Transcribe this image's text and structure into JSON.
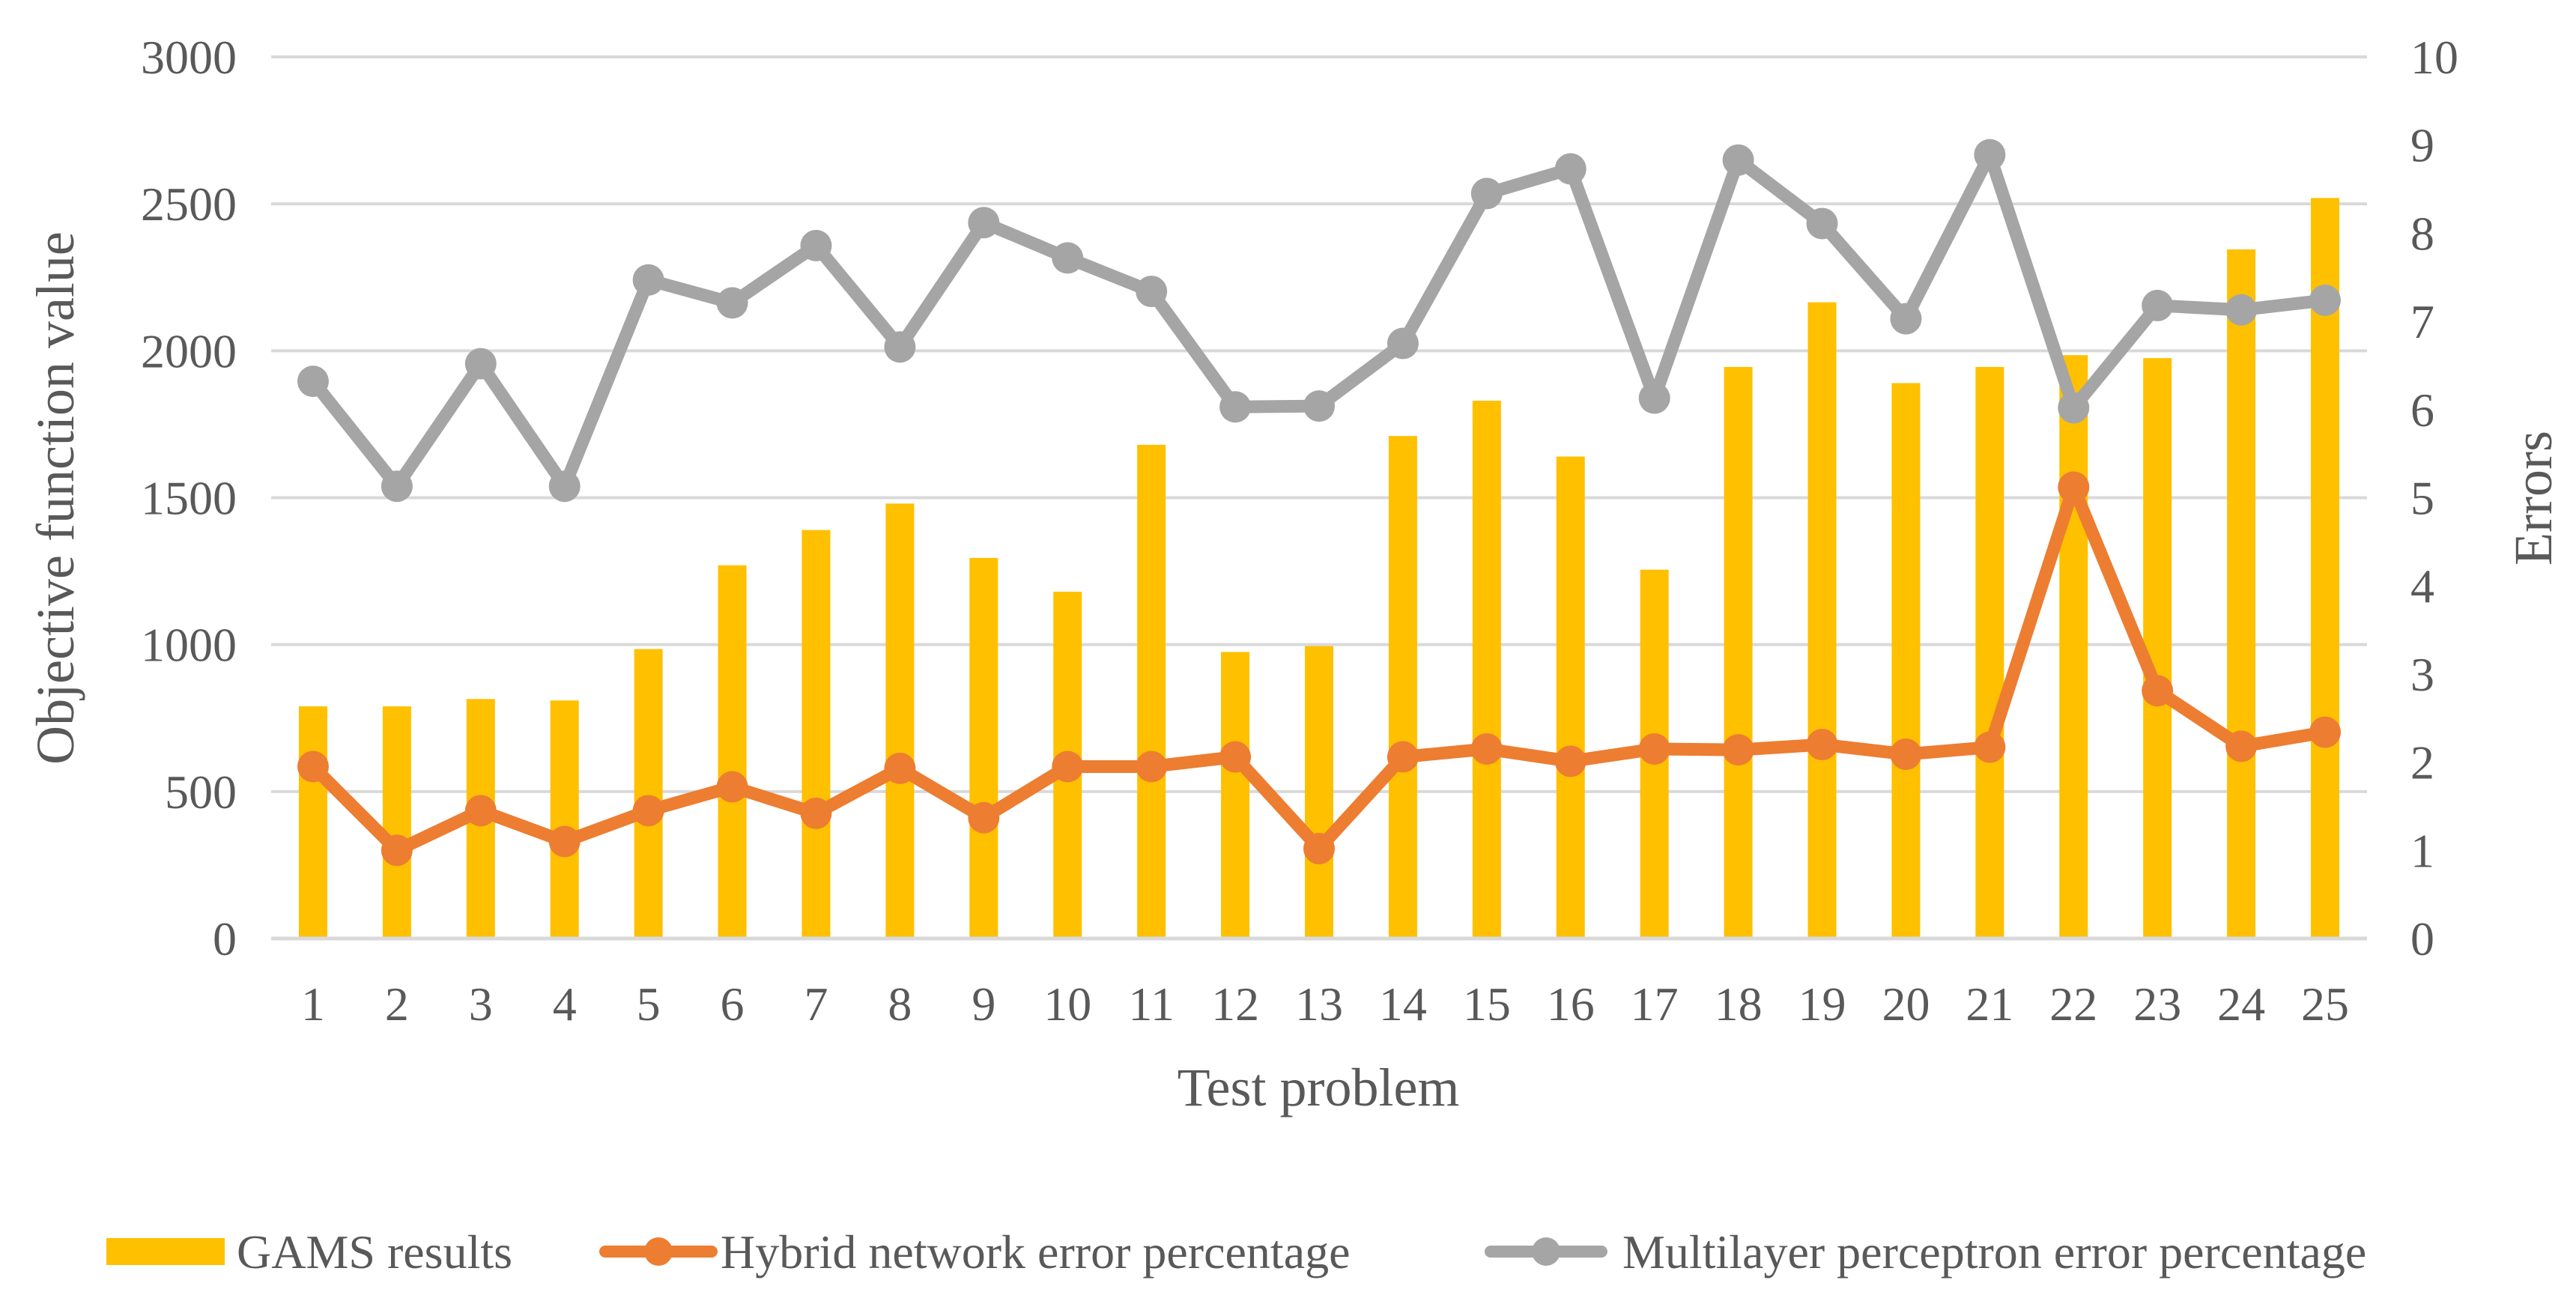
{
  "chart_data": {
    "type": "bar",
    "categories": [
      "1",
      "2",
      "3",
      "4",
      "5",
      "6",
      "7",
      "8",
      "9",
      "10",
      "11",
      "12",
      "13",
      "14",
      "15",
      "16",
      "17",
      "18",
      "19",
      "20",
      "21",
      "22",
      "23",
      "24",
      "25"
    ],
    "xlabel": "Test problem",
    "ylabel": "Objective function value",
    "y2label": "Errors",
    "ylim": [
      0,
      3000
    ],
    "y_ticks": [
      "0",
      "500",
      "1000",
      "1500",
      "2000",
      "2500",
      "3000"
    ],
    "y2lim": [
      0,
      10
    ],
    "y2_ticks": [
      "0",
      "1",
      "2",
      "3",
      "4",
      "5",
      "6",
      "7",
      "8",
      "9",
      "10"
    ],
    "grid": true,
    "legend_position": "bottom",
    "series": [
      {
        "name": "GAMS results",
        "type": "bar",
        "axis": "left",
        "color": "#FFC000",
        "values": [
          790,
          790,
          815,
          810,
          985,
          1270,
          1390,
          1480,
          1295,
          1180,
          1680,
          975,
          995,
          1710,
          1830,
          1640,
          1255,
          1945,
          2165,
          1890,
          1945,
          1985,
          1975,
          2345,
          2520
        ]
      },
      {
        "name": "Hybrid network error percentage",
        "type": "line",
        "axis": "right",
        "color": "#ED7D31",
        "values": [
          1.95,
          1.0,
          1.45,
          1.1,
          1.45,
          1.72,
          1.42,
          1.93,
          1.37,
          1.95,
          1.95,
          2.06,
          1.02,
          2.06,
          2.15,
          2.01,
          2.15,
          2.14,
          2.2,
          2.09,
          2.17,
          5.12,
          2.81,
          2.18,
          2.34
        ]
      },
      {
        "name": "Multilayer perceptron error percentage",
        "type": "line",
        "axis": "right",
        "color": "#A5A5A5",
        "values": [
          6.32,
          5.13,
          6.52,
          5.13,
          7.47,
          7.21,
          7.86,
          6.71,
          8.12,
          7.72,
          7.34,
          6.03,
          6.04,
          6.75,
          8.45,
          8.73,
          6.13,
          8.83,
          8.11,
          7.03,
          8.89,
          6.02,
          7.18,
          7.13,
          7.24
        ]
      }
    ]
  }
}
